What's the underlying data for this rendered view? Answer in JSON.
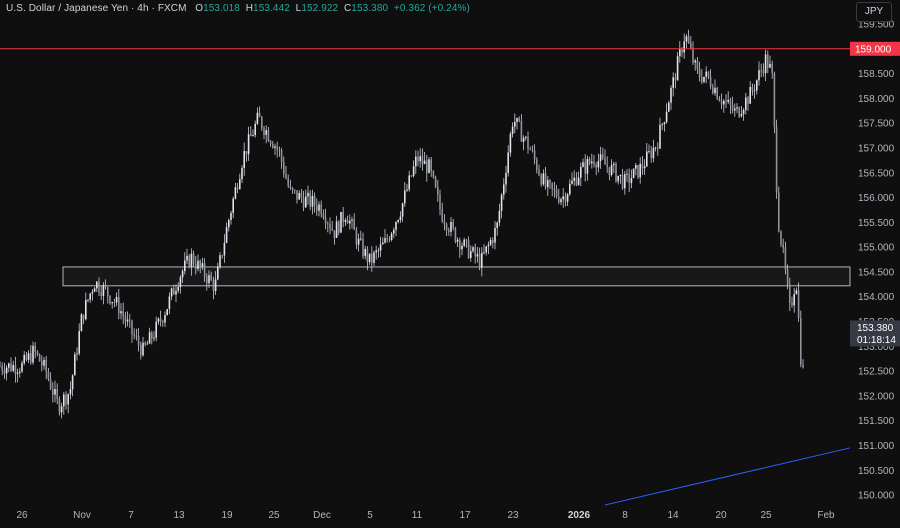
{
  "header": {
    "symbol": "U.S. Dollar / Japanese Yen · 4h · FXCM",
    "open_label": "O",
    "open": "153.018",
    "high_label": "H",
    "high": "153.442",
    "low_label": "L",
    "low": "152.922",
    "close_label": "C",
    "close": "153.380",
    "change": "+0.362 (+0.24%)"
  },
  "currency_button": "JPY",
  "colors": {
    "background": "#0f0f0f",
    "candle": "#c9ccd4",
    "resistance_line": "#f23645",
    "trendline": "#2962ff",
    "zone_border": "#b2b5be",
    "price_label_bg": "#363a45"
  },
  "chart_data": {
    "type": "candlestick",
    "timeframe": "4h",
    "ylim": [
      149.9,
      159.5
    ],
    "y_ticks": [
      "150.000",
      "150.500",
      "151.000",
      "151.500",
      "152.000",
      "152.500",
      "153.000",
      "153.500",
      "154.000",
      "154.500",
      "155.000",
      "155.500",
      "156.000",
      "156.500",
      "157.000",
      "157.500",
      "158.000",
      "158.500",
      "159.000",
      "159.500"
    ],
    "x_tick_labels": [
      "26",
      "Nov",
      "7",
      "13",
      "19",
      "25",
      "Dec",
      "5",
      "11",
      "17",
      "23",
      "2026",
      "8",
      "14",
      "20",
      "25",
      "Feb"
    ],
    "bold_tick_labels": [
      "2026"
    ],
    "resistance_level": {
      "value": 159.0,
      "label": "159.000"
    },
    "support_zone": {
      "low": 154.22,
      "high": 154.6
    },
    "trendline": {
      "from_label": "2026",
      "from_value": 149.8,
      "to": "right edge",
      "to_value": 150.95
    },
    "last_price": {
      "value": 153.38,
      "label": "153.380",
      "countdown": "01:18:14"
    },
    "path": [
      [
        "26",
        152.6
      ],
      [
        "26",
        152.9
      ],
      [
        "26",
        152.5
      ],
      [
        "26",
        151.8
      ],
      [
        "26",
        152.1
      ],
      [
        "Nov",
        153.6
      ],
      [
        "Nov",
        154.3
      ],
      [
        "Nov",
        154.1
      ],
      [
        "Nov",
        153.8
      ],
      [
        "7",
        153.3
      ],
      [
        "7",
        152.9
      ],
      [
        "7",
        153.3
      ],
      [
        "7",
        153.8
      ],
      [
        "13",
        154.4
      ],
      [
        "13",
        154.8
      ],
      [
        "13",
        154.5
      ],
      [
        "13",
        154.2
      ],
      [
        "19",
        155.4
      ],
      [
        "19",
        156.8
      ],
      [
        "19",
        157.6
      ],
      [
        "25",
        157.1
      ],
      [
        "25",
        156.9
      ],
      [
        "25",
        156.5
      ],
      [
        "25",
        156.1
      ],
      [
        "Dec",
        155.8
      ],
      [
        "Dec",
        155.3
      ],
      [
        "Dec",
        155.7
      ],
      [
        "Dec",
        155.1
      ],
      [
        "5",
        154.7
      ],
      [
        "5",
        155.1
      ],
      [
        "5",
        155.8
      ],
      [
        "11",
        156.8
      ],
      [
        "11",
        156.6
      ],
      [
        "11",
        155.7
      ],
      [
        "11",
        155.3
      ],
      [
        "17",
        155.0
      ],
      [
        "17",
        154.7
      ],
      [
        "17",
        155.4
      ],
      [
        "23",
        157.6
      ],
      [
        "23",
        157.0
      ],
      [
        "23",
        156.2
      ],
      [
        "23",
        156.0
      ],
      [
        "2026",
        156.5
      ],
      [
        "2026",
        156.8
      ],
      [
        "2026",
        156.6
      ],
      [
        "8",
        156.3
      ],
      [
        "8",
        156.6
      ],
      [
        "8",
        157.1
      ],
      [
        "14",
        158.3
      ],
      [
        "14",
        159.3
      ],
      [
        "14",
        158.5
      ],
      [
        "14",
        158.4
      ],
      [
        "20",
        158.0
      ],
      [
        "20",
        157.7
      ],
      [
        "20",
        158.1
      ],
      [
        "25",
        158.8
      ],
      [
        "25",
        158.5
      ],
      [
        "25",
        155.6
      ],
      [
        "25",
        154.7
      ],
      [
        "25",
        153.7
      ],
      [
        "25",
        154.4
      ],
      [
        "25",
        152.4
      ],
      [
        "25",
        152.9
      ],
      [
        "25",
        153.4
      ]
    ]
  }
}
